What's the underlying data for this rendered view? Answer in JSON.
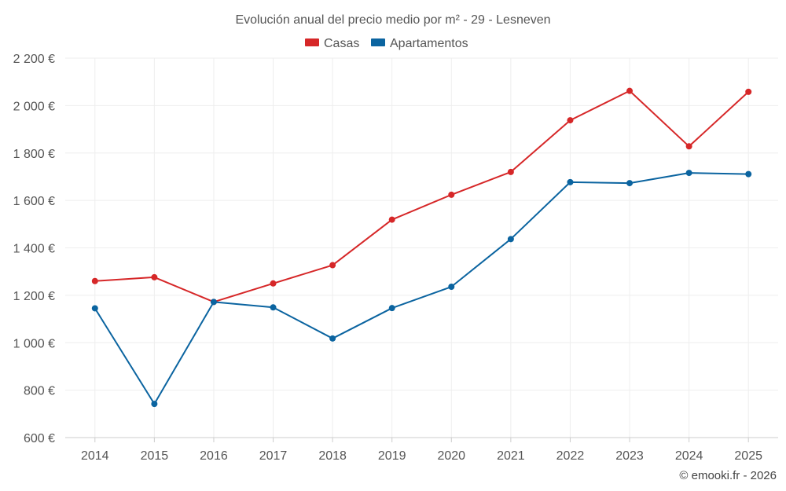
{
  "chart_data": {
    "type": "line",
    "title": "Evolución anual del precio medio por m² - 29 - Lesneven",
    "categories": [
      "2014",
      "2015",
      "2016",
      "2017",
      "2018",
      "2019",
      "2020",
      "2021",
      "2022",
      "2023",
      "2024",
      "2025"
    ],
    "series": [
      {
        "name": "Casas",
        "color": "#d62728",
        "values": [
          1260,
          1276,
          1172,
          1250,
          1327,
          1519,
          1624,
          1720,
          1938,
          2062,
          1828,
          2058
        ]
      },
      {
        "name": "Apartamentos",
        "color": "#0b64a0",
        "values": [
          1145,
          742,
          1172,
          1149,
          1018,
          1146,
          1236,
          1437,
          1677,
          1673,
          1716,
          1711
        ]
      }
    ],
    "ylim": [
      600,
      2200
    ],
    "yticks": [
      600,
      800,
      1000,
      1200,
      1400,
      1600,
      1800,
      2000,
      2200
    ],
    "ytick_labels": [
      "600 €",
      "800 €",
      "1 000 €",
      "1 200 €",
      "1 400 €",
      "1 600 €",
      "1 800 €",
      "2 000 €",
      "2 200 €"
    ],
    "xlabel": "",
    "ylabel": "",
    "grid": true,
    "legend_position": "top-center"
  },
  "credit": "© emooki.fr - 2026"
}
